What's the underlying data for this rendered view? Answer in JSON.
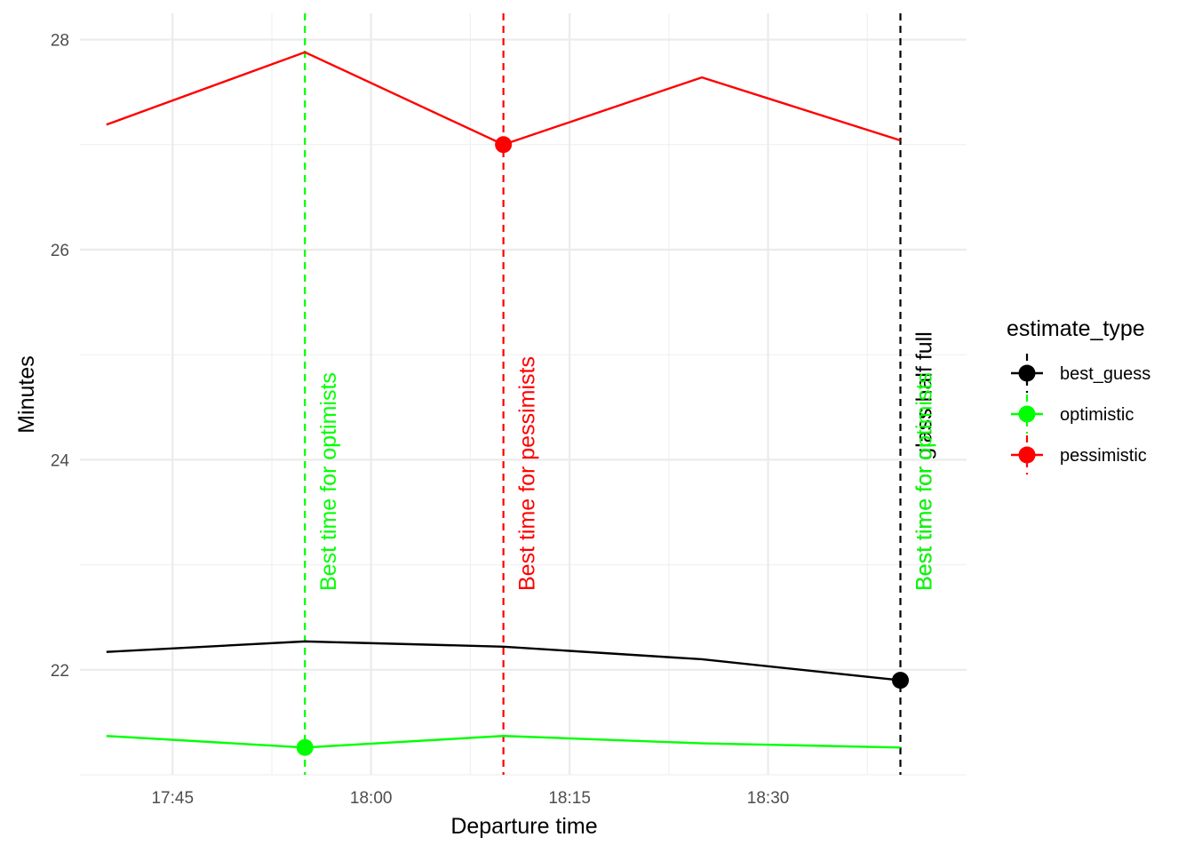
{
  "chart_data": {
    "type": "line",
    "xlabel": "Departure time",
    "ylabel": "Minutes",
    "x": [
      "17:40",
      "17:55",
      "18:10",
      "18:25",
      "18:40"
    ],
    "x_minutes": [
      1060,
      1075,
      1090,
      1105,
      1120
    ],
    "xlim_minutes": [
      1058,
      1125
    ],
    "ylim": [
      21.0,
      28.25
    ],
    "x_ticks": [
      {
        "label": "17:45",
        "value": 1065
      },
      {
        "label": "18:00",
        "value": 1080
      },
      {
        "label": "18:15",
        "value": 1095
      },
      {
        "label": "18:30",
        "value": 1110
      }
    ],
    "y_ticks": [
      {
        "label": "22",
        "value": 22
      },
      {
        "label": "24",
        "value": 24
      },
      {
        "label": "26",
        "value": 26
      },
      {
        "label": "28",
        "value": 28
      }
    ],
    "grid": true,
    "legend": {
      "title": "estimate_type",
      "position": "right"
    },
    "series": [
      {
        "name": "best_guess",
        "color": "#000000",
        "values": [
          22.17,
          22.27,
          22.22,
          22.1,
          21.9
        ],
        "highlight_index": 4
      },
      {
        "name": "optimistic",
        "color": "#00ff00",
        "values": [
          21.37,
          21.26,
          21.37,
          21.3,
          21.26
        ],
        "highlight_index": 1
      },
      {
        "name": "pessimistic",
        "color": "#ff0000",
        "values": [
          27.19,
          27.88,
          27.0,
          27.64,
          27.04
        ],
        "highlight_index": 2
      }
    ],
    "annotations": [
      {
        "text": "Best time for optimists",
        "x_minutes": 1075,
        "color": "#00ff00"
      },
      {
        "text": "Best time for pessimists",
        "x_minutes": 1090,
        "color": "#ff0000"
      },
      {
        "text": "Best time for glass half full",
        "x_minutes": 1120,
        "color": "#000000"
      },
      {
        "text": "Best time for optimists",
        "x_minutes": 1120,
        "color": "#00ff00"
      }
    ]
  }
}
